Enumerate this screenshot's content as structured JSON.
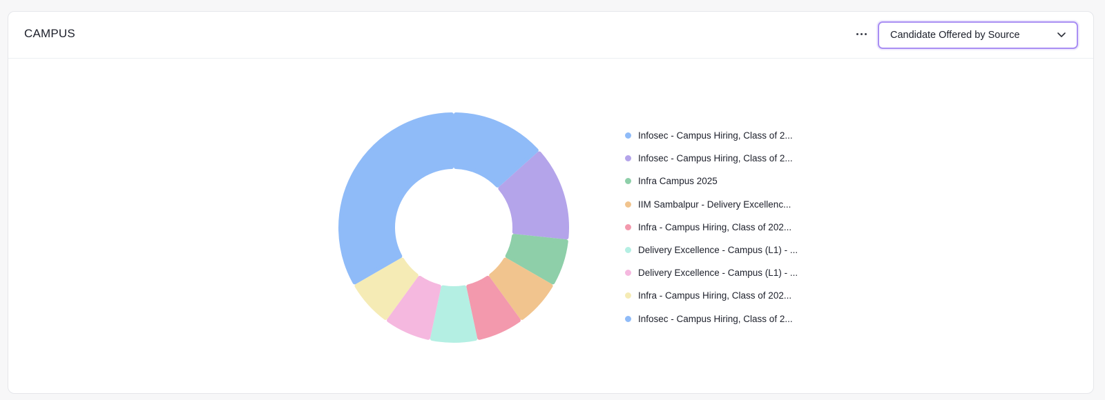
{
  "card": {
    "title": "CAMPUS",
    "more_icon": "more-horizontal-icon",
    "dropdown": {
      "selected": "Candidate Offered by Source",
      "icon": "chevron-down-icon"
    }
  },
  "chart_data": {
    "type": "pie",
    "donut": true,
    "title": "",
    "legend_position": "right",
    "categories": [
      "Infosec - Campus Hiring, Class of 2...",
      "Infosec - Campus Hiring, Class of 2...",
      "Infra Campus 2025",
      "IIM Sambalpur - Delivery Excellenc...",
      "Infra - Campus Hiring, Class of 202...",
      "Delivery Excellence - Campus (L1) - ...",
      "Delivery Excellence - Campus (L1) - ...",
      "Infra - Campus Hiring, Class of 202...",
      "Infosec - Campus Hiring, Class of 2..."
    ],
    "values": [
      4,
      4,
      2,
      2,
      2,
      2,
      2,
      2,
      10
    ],
    "colors": [
      "#8fbbf8",
      "#b4a4ea",
      "#8ecfa9",
      "#f1c48e",
      "#f399ad",
      "#b4efe3",
      "#f5b8df",
      "#f5ebb5",
      "#8fbbf8"
    ]
  }
}
